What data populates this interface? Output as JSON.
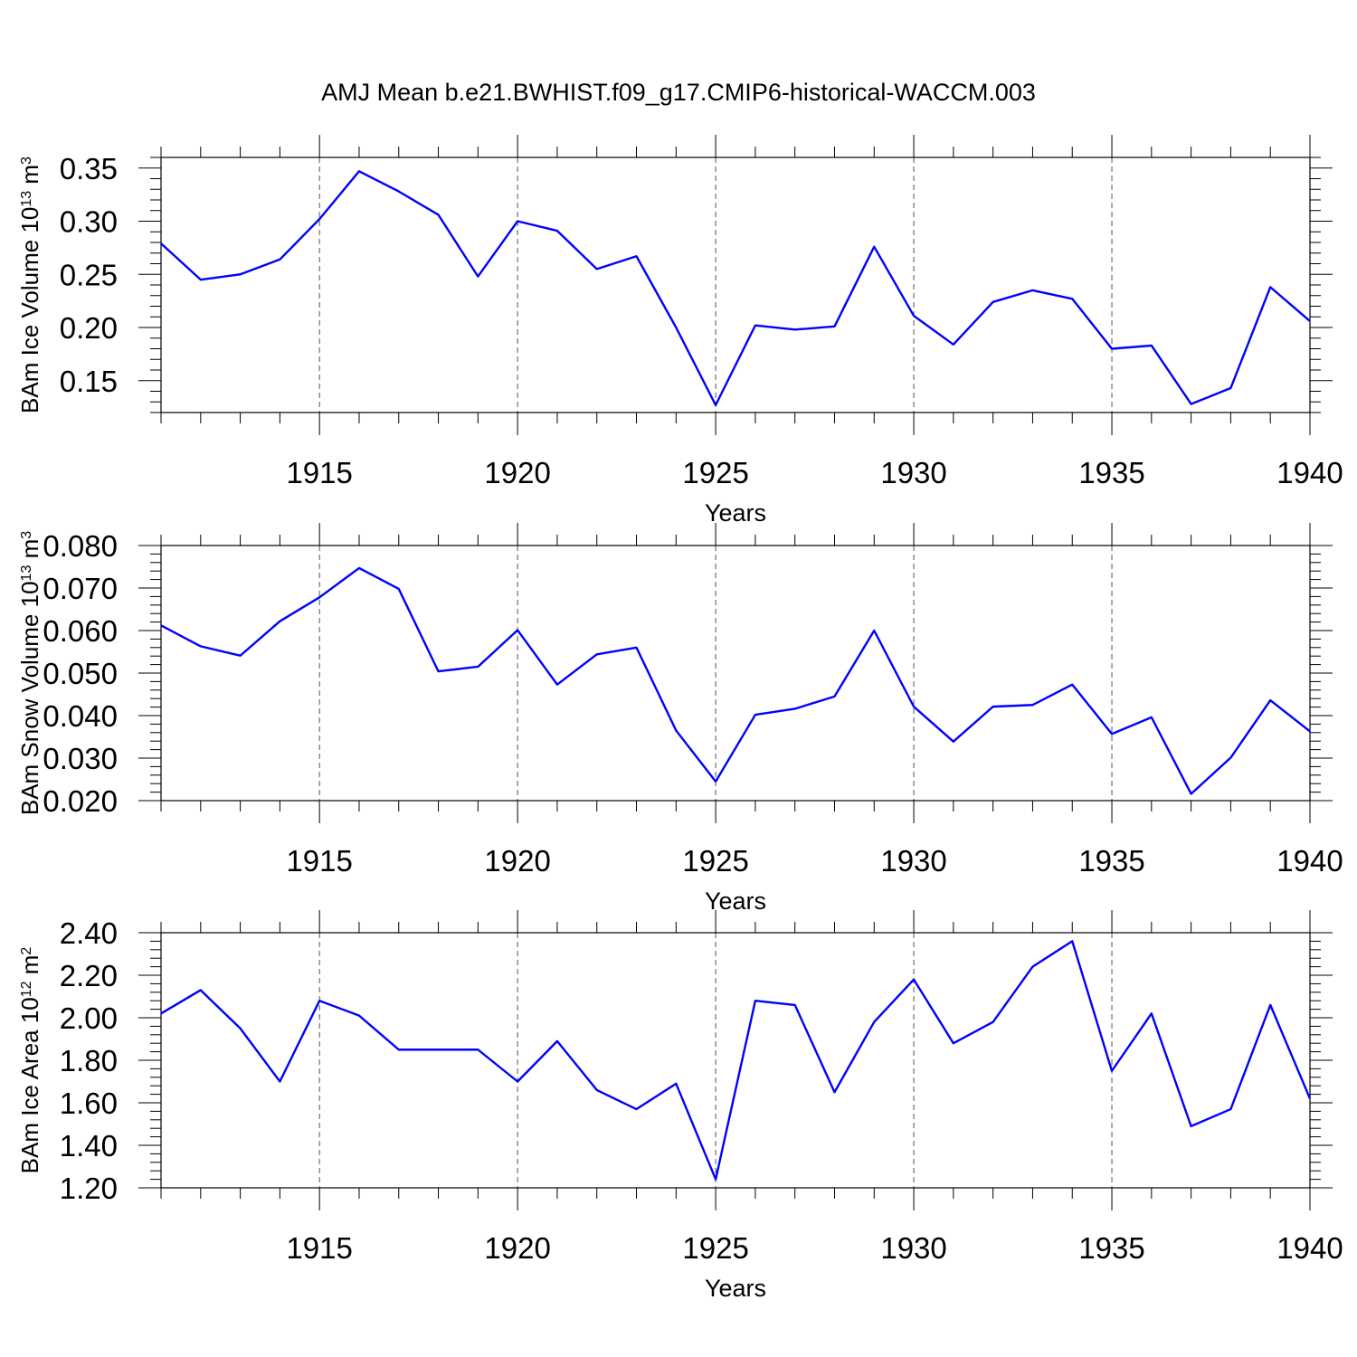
{
  "title": "AMJ Mean b.e21.BWHIST.f09_g17.CMIP6-historical-WACCM.003",
  "chart_data": [
    {
      "type": "line",
      "title": "AMJ Mean b.e21.BWHIST.f09_g17.CMIP6-historical-WACCM.003",
      "xlabel": "Years",
      "ylabel": "BAm Ice Volume",
      "ylabel_unit_base": "10",
      "ylabel_unit_exp": "13",
      "ylabel_unit": "m",
      "ylabel_unit_pow": "3",
      "xlim": [
        1911,
        1940
      ],
      "ylim": [
        0.12,
        0.36
      ],
      "xticks": [
        1915,
        1920,
        1925,
        1930,
        1935,
        1940
      ],
      "xtick_labels": [
        "1915",
        "1920",
        "1925",
        "1930",
        "1935",
        "1940"
      ],
      "yticks": [
        0.15,
        0.2,
        0.25,
        0.3,
        0.35
      ],
      "ytick_labels": [
        "0.15",
        "0.20",
        "0.25",
        "0.30",
        "0.35"
      ],
      "grid": "vertical dashed at labeled years",
      "series": [
        {
          "name": "BAm Ice Volume",
          "color": "#0000ff",
          "x": [
            1911,
            1912,
            1913,
            1914,
            1915,
            1916,
            1917,
            1918,
            1919,
            1920,
            1921,
            1922,
            1923,
            1924,
            1925,
            1926,
            1927,
            1928,
            1929,
            1930,
            1931,
            1932,
            1933,
            1934,
            1935,
            1936,
            1937,
            1938,
            1939,
            1940
          ],
          "values": [
            0.279,
            0.245,
            0.25,
            0.264,
            0.302,
            0.347,
            0.328,
            0.306,
            0.248,
            0.3,
            0.291,
            0.255,
            0.267,
            0.2,
            0.127,
            0.202,
            0.198,
            0.201,
            0.276,
            0.211,
            0.184,
            0.224,
            0.235,
            0.227,
            0.18,
            0.183,
            0.128,
            0.143,
            0.238,
            0.206
          ]
        }
      ]
    },
    {
      "type": "line",
      "xlabel": "Years",
      "ylabel": "BAm Snow Volume",
      "ylabel_unit_base": "10",
      "ylabel_unit_exp": "13",
      "ylabel_unit": "m",
      "ylabel_unit_pow": "3",
      "xlim": [
        1911,
        1940
      ],
      "ylim": [
        0.02,
        0.08
      ],
      "xticks": [
        1915,
        1920,
        1925,
        1930,
        1935,
        1940
      ],
      "xtick_labels": [
        "1915",
        "1920",
        "1925",
        "1930",
        "1935",
        "1940"
      ],
      "yticks": [
        0.02,
        0.03,
        0.04,
        0.05,
        0.06,
        0.07,
        0.08
      ],
      "ytick_labels": [
        "0.020",
        "0.030",
        "0.040",
        "0.050",
        "0.060",
        "0.070",
        "0.080"
      ],
      "grid": "vertical dashed at labeled years",
      "series": [
        {
          "name": "BAm Snow Volume",
          "color": "#0000ff",
          "x": [
            1911,
            1912,
            1913,
            1914,
            1915,
            1916,
            1917,
            1918,
            1919,
            1920,
            1921,
            1922,
            1923,
            1924,
            1925,
            1926,
            1927,
            1928,
            1929,
            1930,
            1931,
            1932,
            1933,
            1934,
            1935,
            1936,
            1937,
            1938,
            1939,
            1940
          ],
          "values": [
            0.0612,
            0.0563,
            0.0541,
            0.0622,
            0.0678,
            0.0747,
            0.0698,
            0.0504,
            0.0515,
            0.0601,
            0.0473,
            0.0544,
            0.056,
            0.0365,
            0.0245,
            0.0402,
            0.0416,
            0.0445,
            0.06,
            0.0421,
            0.0339,
            0.0421,
            0.0425,
            0.0473,
            0.0357,
            0.0396,
            0.0216,
            0.0301,
            0.0436,
            0.0363
          ]
        }
      ]
    },
    {
      "type": "line",
      "xlabel": "Years",
      "ylabel": "BAm Ice Area",
      "ylabel_unit_base": "10",
      "ylabel_unit_exp": "12",
      "ylabel_unit": "m",
      "ylabel_unit_pow": "2",
      "xlim": [
        1911,
        1940
      ],
      "ylim": [
        1.2,
        2.4
      ],
      "xticks": [
        1915,
        1920,
        1925,
        1930,
        1935,
        1940
      ],
      "xtick_labels": [
        "1915",
        "1920",
        "1925",
        "1930",
        "1935",
        "1940"
      ],
      "yticks": [
        1.2,
        1.4,
        1.6,
        1.8,
        2.0,
        2.2,
        2.4
      ],
      "ytick_labels": [
        "1.20",
        "1.40",
        "1.60",
        "1.80",
        "2.00",
        "2.20",
        "2.40"
      ],
      "grid": "vertical dashed at labeled years",
      "series": [
        {
          "name": "BAm Ice Area",
          "color": "#0000ff",
          "x": [
            1911,
            1912,
            1913,
            1914,
            1915,
            1916,
            1917,
            1918,
            1919,
            1920,
            1921,
            1922,
            1923,
            1924,
            1925,
            1926,
            1927,
            1928,
            1929,
            1930,
            1931,
            1932,
            1933,
            1934,
            1935,
            1936,
            1937,
            1938,
            1939,
            1940
          ],
          "values": [
            2.02,
            2.13,
            1.95,
            1.7,
            2.08,
            2.01,
            1.85,
            1.85,
            1.85,
            1.7,
            1.89,
            1.66,
            1.57,
            1.69,
            1.24,
            2.08,
            2.06,
            1.65,
            1.98,
            2.18,
            1.88,
            1.98,
            2.24,
            2.36,
            1.75,
            2.02,
            1.49,
            1.57,
            2.06,
            1.62
          ]
        }
      ]
    }
  ]
}
